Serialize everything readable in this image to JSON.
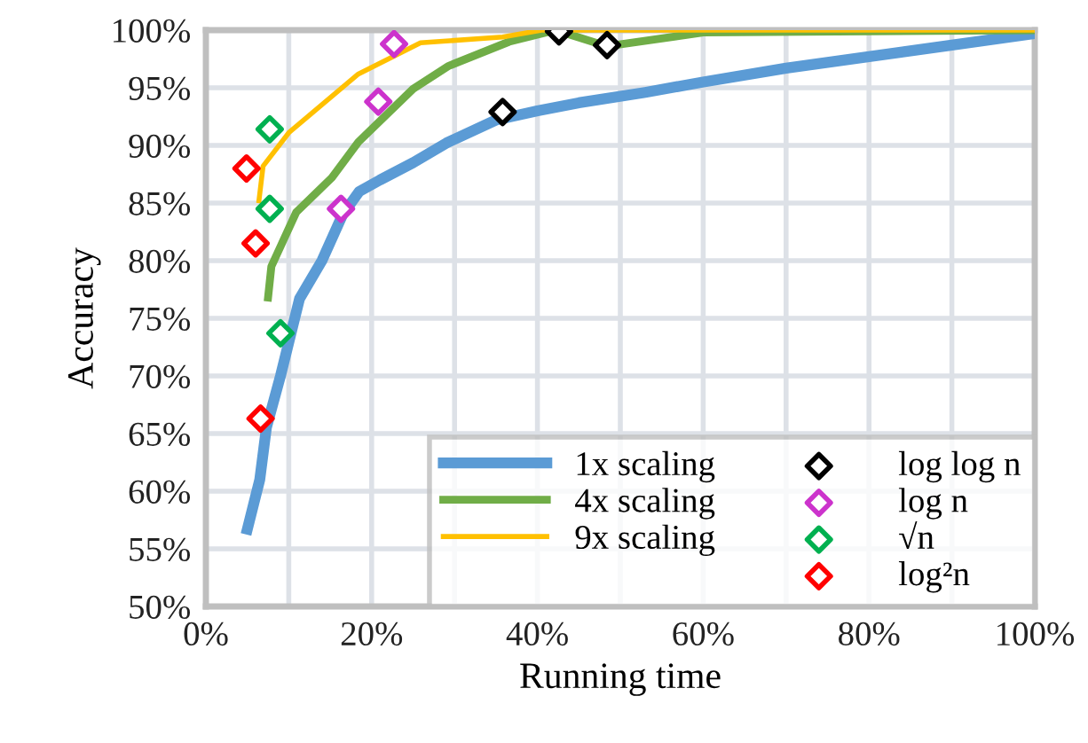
{
  "chart_data": {
    "type": "line",
    "xlabel": "Running time",
    "ylabel": "Accuracy",
    "xlim": [
      0,
      100
    ],
    "ylim": [
      50,
      100
    ],
    "xticks": [
      {
        "value": 0,
        "label": "0%"
      },
      {
        "value": 10,
        "label": null
      },
      {
        "value": 20,
        "label": "20%"
      },
      {
        "value": 30,
        "label": null
      },
      {
        "value": 40,
        "label": "40%"
      },
      {
        "value": 50,
        "label": null
      },
      {
        "value": 60,
        "label": "60%"
      },
      {
        "value": 70,
        "label": null
      },
      {
        "value": 80,
        "label": "80%"
      },
      {
        "value": 90,
        "label": null
      },
      {
        "value": 100,
        "label": "100%"
      }
    ],
    "yticks": [
      {
        "value": 50,
        "label": "50%"
      },
      {
        "value": 55,
        "label": "55%"
      },
      {
        "value": 60,
        "label": "60%"
      },
      {
        "value": 65,
        "label": "65%"
      },
      {
        "value": 70,
        "label": "70%"
      },
      {
        "value": 75,
        "label": "75%"
      },
      {
        "value": 80,
        "label": "80%"
      },
      {
        "value": 85,
        "label": "85%"
      },
      {
        "value": 90,
        "label": "90%"
      },
      {
        "value": 95,
        "label": "95%"
      },
      {
        "value": 100,
        "label": "100%"
      }
    ],
    "grid": true,
    "legend": "bottom right",
    "line_style": "solid",
    "series": [
      {
        "name": "1x scaling",
        "color": "#5b9bd5",
        "x": [
          5,
          6.5,
          7.3,
          9,
          11.3,
          14,
          16.5,
          18.5,
          21,
          25,
          29,
          35,
          40,
          45,
          53,
          60,
          70,
          80,
          90,
          100
        ],
        "values": [
          56.7,
          61,
          65.5,
          70,
          76.7,
          80,
          84,
          86,
          87,
          88.5,
          90.2,
          92.2,
          93,
          93.7,
          94.6,
          95.5,
          96.7,
          97.7,
          98.7,
          99.7
        ]
      },
      {
        "name": "4x scaling",
        "color": "#70ad47",
        "x": [
          7.5,
          7.9,
          10.9,
          15.2,
          18.4,
          25,
          29.3,
          36.6,
          42.2,
          48.4,
          60,
          100
        ],
        "values": [
          76.8,
          79.5,
          84.2,
          87.2,
          90.3,
          94.9,
          96.9,
          99,
          100,
          98.6,
          99.8,
          100
        ]
      },
      {
        "name": "9x scaling",
        "color": "#ffc000",
        "x": [
          6.4,
          6.9,
          10,
          18.4,
          25.9,
          35.8,
          40.5,
          100
        ],
        "values": [
          85.2,
          88.2,
          91.1,
          96.2,
          98.9,
          99.4,
          100,
          100
        ]
      },
      {
        "name": "log log n",
        "type": "scatter",
        "marker": "diamond",
        "color": "#000000",
        "x": [
          35.8,
          42.6,
          48.4
        ],
        "values": [
          92.9,
          99.9,
          98.7
        ]
      },
      {
        "name": "log n",
        "type": "scatter",
        "marker": "diamond",
        "color": "#cc33cc",
        "x": [
          16.3,
          20.8,
          22.7
        ],
        "values": [
          84.5,
          93.8,
          98.8
        ]
      },
      {
        "name": "√n",
        "type": "scatter",
        "marker": "diamond",
        "color": "#00b050",
        "x": [
          7.7,
          7.7,
          9
        ],
        "values": [
          91.4,
          84.5,
          73.7
        ]
      },
      {
        "name": "log²n",
        "type": "scatter",
        "marker": "diamond",
        "color": "#ff0000",
        "x": [
          4.9,
          6,
          6.6
        ],
        "values": [
          88,
          81.5,
          66.3
        ]
      }
    ]
  }
}
